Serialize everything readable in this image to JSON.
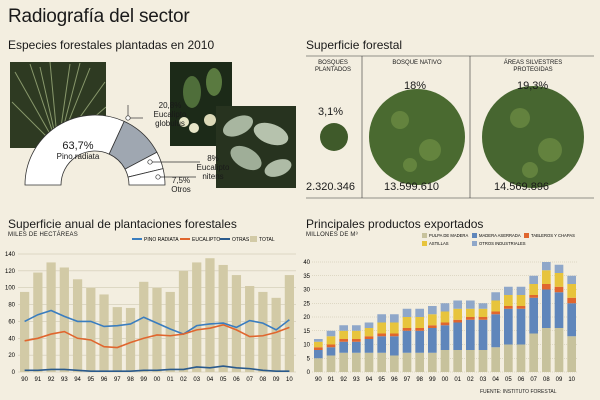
{
  "title": "Radiografía del sector",
  "species": {
    "title": "Especies forestales plantadas en 2010",
    "items": [
      {
        "pct": "63,7%",
        "name": "Pino radiata",
        "value": 63.7
      },
      {
        "pct": "20,8%",
        "name": "Eucalipto globulus",
        "value": 20.8
      },
      {
        "pct": "8%",
        "name": "Eucalipto nitens",
        "value": 8.0
      },
      {
        "pct": "7,5%",
        "name": "Otros",
        "value": 7.5
      }
    ]
  },
  "forest": {
    "title": "Superficie forestal",
    "items": [
      {
        "header": "BOSQUES PLANTADOS",
        "pct": "3,1%",
        "value": "2.320.346"
      },
      {
        "header": "BOSQUE NATIVO",
        "pct": "18%",
        "value": "13.599.610"
      },
      {
        "header": "ÁREAS SILVESTRES PROTEGIDAS",
        "pct": "19,3%",
        "value": "14.569.896"
      }
    ]
  },
  "colors": {
    "pino": "#3a7dbf",
    "eucalipto": "#e0662e",
    "otras": "#2a5a8c",
    "total": "#d2caa6",
    "pulpa": "#c7c29c",
    "aserrada": "#5f86bb",
    "tableros": "#e0662e",
    "astillas": "#e7c43c",
    "otros": "#8fa7c9"
  },
  "chart_data": [
    {
      "type": "bar",
      "title": "Superficie anual de plantaciones forestales",
      "ylabel": "MILES DE HECTÁREAS",
      "categories": [
        "90",
        "91",
        "92",
        "93",
        "94",
        "95",
        "96",
        "97",
        "98",
        "99",
        "00",
        "01",
        "02",
        "03",
        "04",
        "05",
        "06",
        "07",
        "08",
        "09",
        "10"
      ],
      "ylim": [
        0,
        140
      ],
      "yticks": [
        0,
        20,
        40,
        60,
        80,
        100,
        120,
        140
      ],
      "series": [
        {
          "name": "TOTAL",
          "kind": "bar",
          "values": [
            95,
            118,
            130,
            124,
            110,
            100,
            92,
            77,
            76,
            107,
            100,
            95,
            120,
            130,
            135,
            127,
            115,
            102,
            95,
            88,
            115
          ]
        },
        {
          "name": "PINO RADIATA",
          "kind": "line",
          "values": [
            60,
            68,
            73,
            66,
            60,
            60,
            54,
            55,
            57,
            65,
            58,
            51,
            45,
            55,
            57,
            58,
            53,
            61,
            58,
            50,
            62
          ]
        },
        {
          "name": "EUCALIPTO",
          "kind": "line",
          "values": [
            37,
            40,
            45,
            48,
            40,
            38,
            30,
            29,
            35,
            40,
            44,
            43,
            45,
            50,
            52,
            56,
            50,
            42,
            43,
            47,
            53
          ]
        },
        {
          "name": "OTRAS",
          "kind": "line",
          "values": [
            2,
            2,
            3,
            3,
            2,
            1,
            1,
            1,
            1,
            2,
            2,
            3,
            3,
            6,
            5,
            7,
            5,
            4,
            2,
            1,
            1
          ]
        }
      ]
    },
    {
      "type": "bar",
      "title": "Principales productos exportados",
      "ylabel": "MILLONES DE M³",
      "categories": [
        "90",
        "91",
        "92",
        "93",
        "94",
        "95",
        "96",
        "97",
        "98",
        "99",
        "00",
        "01",
        "02",
        "03",
        "04",
        "05",
        "06",
        "07",
        "08",
        "09",
        "10"
      ],
      "ylim": [
        0,
        40
      ],
      "yticks": [
        0,
        5,
        10,
        15,
        20,
        25,
        30,
        35,
        40
      ],
      "source": "FUENTE: INSTITUTO FORESTAL",
      "series": [
        {
          "name": "PULPA DE MADERA",
          "values": [
            5,
            6,
            7,
            7,
            7,
            7,
            6,
            7,
            7,
            7,
            8,
            8,
            8,
            8,
            9,
            10,
            10,
            14,
            16,
            16,
            13
          ]
        },
        {
          "name": "MADERA ASERRADA",
          "values": [
            3,
            3,
            4,
            4,
            5,
            6,
            7,
            8,
            8,
            9,
            9,
            10,
            11,
            11,
            12,
            13,
            13,
            13,
            14,
            13,
            12
          ]
        },
        {
          "name": "TABLEROS Y CHAPAS",
          "values": [
            1,
            1,
            1,
            1,
            1,
            1,
            1,
            1,
            1,
            1,
            1,
            1,
            1,
            1,
            1,
            1,
            1,
            1,
            2,
            2,
            2
          ]
        },
        {
          "name": "ASTILLAS",
          "values": [
            2,
            3,
            3,
            3,
            3,
            4,
            4,
            4,
            4,
            4,
            4,
            4,
            3,
            3,
            4,
            4,
            4,
            4,
            5,
            5,
            5
          ]
        },
        {
          "name": "OTROS INDUSTRIALES",
          "values": [
            1,
            2,
            2,
            2,
            2,
            3,
            3,
            3,
            3,
            3,
            3,
            3,
            3,
            2,
            3,
            3,
            3,
            3,
            3,
            3,
            3
          ]
        }
      ]
    }
  ]
}
